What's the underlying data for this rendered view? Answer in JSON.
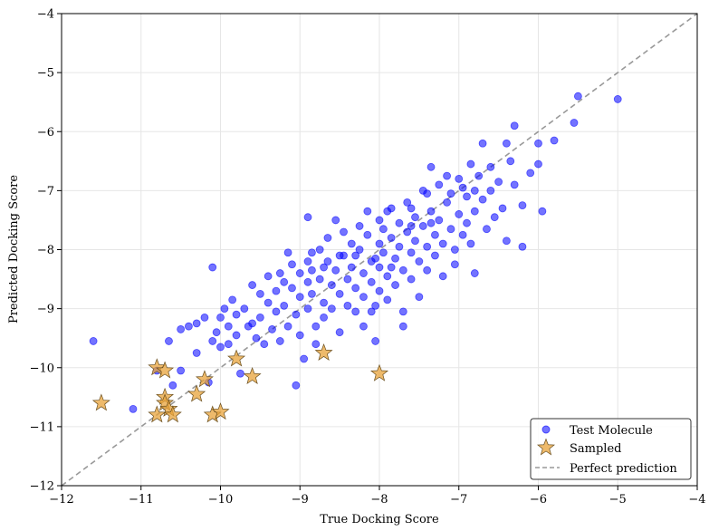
{
  "chart_data": {
    "type": "scatter",
    "title": "",
    "xlabel": "True Docking Score",
    "ylabel": "Predicted Docking Score",
    "xlim": [
      -12,
      -4
    ],
    "ylim": [
      -12,
      -4
    ],
    "xticks": [
      -12,
      -11,
      -10,
      -9,
      -8,
      -7,
      -6,
      -5,
      -4
    ],
    "yticks": [
      -12,
      -11,
      -10,
      -9,
      -8,
      -7,
      -6,
      -5,
      -4
    ],
    "tick_labels": [
      "−12",
      "−11",
      "−10",
      "−9",
      "−8",
      "−7",
      "−6",
      "−5",
      "−4"
    ],
    "grid": true,
    "legend_position": "lower-right",
    "series": [
      {
        "name": "Test Molecule",
        "marker": "circle",
        "color": "#0000ff",
        "points": [
          [
            -11.6,
            -9.55
          ],
          [
            -11.1,
            -10.7
          ],
          [
            -10.8,
            -10.05
          ],
          [
            -10.65,
            -9.55
          ],
          [
            -10.6,
            -10.3
          ],
          [
            -10.5,
            -9.35
          ],
          [
            -10.5,
            -10.05
          ],
          [
            -10.4,
            -9.3
          ],
          [
            -10.3,
            -9.25
          ],
          [
            -10.3,
            -9.75
          ],
          [
            -10.2,
            -9.15
          ],
          [
            -10.15,
            -10.25
          ],
          [
            -10.1,
            -9.55
          ],
          [
            -10.1,
            -8.3
          ],
          [
            -10.05,
            -9.4
          ],
          [
            -10.0,
            -9.15
          ],
          [
            -10.0,
            -9.65
          ],
          [
            -9.95,
            -9.0
          ],
          [
            -9.9,
            -9.3
          ],
          [
            -9.9,
            -9.6
          ],
          [
            -9.85,
            -8.85
          ],
          [
            -9.8,
            -9.1
          ],
          [
            -9.8,
            -9.45
          ],
          [
            -9.75,
            -10.1
          ],
          [
            -9.7,
            -9.0
          ],
          [
            -9.65,
            -9.3
          ],
          [
            -9.6,
            -8.6
          ],
          [
            -9.6,
            -9.25
          ],
          [
            -9.55,
            -9.5
          ],
          [
            -9.5,
            -8.75
          ],
          [
            -9.5,
            -9.15
          ],
          [
            -9.45,
            -9.6
          ],
          [
            -9.4,
            -8.45
          ],
          [
            -9.4,
            -8.9
          ],
          [
            -9.35,
            -9.35
          ],
          [
            -9.3,
            -8.7
          ],
          [
            -9.3,
            -9.05
          ],
          [
            -9.25,
            -9.55
          ],
          [
            -9.2,
            -8.55
          ],
          [
            -9.2,
            -8.95
          ],
          [
            -9.15,
            -9.3
          ],
          [
            -9.1,
            -8.25
          ],
          [
            -9.1,
            -8.65
          ],
          [
            -9.05,
            -9.1
          ],
          [
            -9.0,
            -8.4
          ],
          [
            -9.0,
            -8.8
          ],
          [
            -9.0,
            -9.45
          ],
          [
            -8.95,
            -9.85
          ],
          [
            -8.9,
            -7.45
          ],
          [
            -8.9,
            -8.2
          ],
          [
            -8.9,
            -8.55
          ],
          [
            -8.9,
            -9.0
          ],
          [
            -8.85,
            -8.35
          ],
          [
            -8.85,
            -8.75
          ],
          [
            -8.8,
            -9.3
          ],
          [
            -8.8,
            -9.6
          ],
          [
            -8.75,
            -8.0
          ],
          [
            -8.75,
            -8.5
          ],
          [
            -8.7,
            -8.9
          ],
          [
            -8.7,
            -9.15
          ],
          [
            -8.65,
            -7.8
          ],
          [
            -8.65,
            -8.2
          ],
          [
            -8.6,
            -8.6
          ],
          [
            -8.6,
            -9.0
          ],
          [
            -8.55,
            -7.5
          ],
          [
            -8.55,
            -8.35
          ],
          [
            -8.5,
            -8.75
          ],
          [
            -8.5,
            -9.4
          ],
          [
            -8.45,
            -7.7
          ],
          [
            -8.45,
            -8.1
          ],
          [
            -8.4,
            -8.5
          ],
          [
            -8.4,
            -8.95
          ],
          [
            -8.35,
            -7.9
          ],
          [
            -8.35,
            -8.3
          ],
          [
            -8.3,
            -8.65
          ],
          [
            -8.3,
            -9.05
          ],
          [
            -8.25,
            -7.6
          ],
          [
            -8.25,
            -8.0
          ],
          [
            -8.2,
            -8.4
          ],
          [
            -8.2,
            -8.8
          ],
          [
            -8.2,
            -9.3
          ],
          [
            -8.15,
            -7.35
          ],
          [
            -8.15,
            -7.75
          ],
          [
            -8.1,
            -8.2
          ],
          [
            -8.1,
            -8.55
          ],
          [
            -8.05,
            -8.95
          ],
          [
            -8.05,
            -9.55
          ],
          [
            -8.0,
            -7.5
          ],
          [
            -8.0,
            -7.9
          ],
          [
            -8.0,
            -8.3
          ],
          [
            -8.0,
            -8.7
          ],
          [
            -7.95,
            -7.65
          ],
          [
            -7.95,
            -8.05
          ],
          [
            -7.9,
            -8.45
          ],
          [
            -7.9,
            -8.85
          ],
          [
            -7.85,
            -7.3
          ],
          [
            -7.85,
            -7.8
          ],
          [
            -7.8,
            -8.15
          ],
          [
            -7.8,
            -8.6
          ],
          [
            -7.75,
            -7.55
          ],
          [
            -7.75,
            -7.95
          ],
          [
            -7.7,
            -8.35
          ],
          [
            -7.7,
            -9.05
          ],
          [
            -7.65,
            -7.2
          ],
          [
            -7.65,
            -7.7
          ],
          [
            -7.6,
            -8.05
          ],
          [
            -7.6,
            -8.5
          ],
          [
            -7.55,
            -7.45
          ],
          [
            -7.55,
            -7.85
          ],
          [
            -7.5,
            -8.2
          ],
          [
            -7.5,
            -8.8
          ],
          [
            -7.45,
            -7.0
          ],
          [
            -7.45,
            -7.6
          ],
          [
            -7.4,
            -7.95
          ],
          [
            -7.4,
            -8.35
          ],
          [
            -7.35,
            -6.6
          ],
          [
            -7.35,
            -7.35
          ],
          [
            -7.3,
            -7.75
          ],
          [
            -7.3,
            -8.1
          ],
          [
            -7.25,
            -6.9
          ],
          [
            -7.25,
            -7.5
          ],
          [
            -7.2,
            -7.9
          ],
          [
            -7.2,
            -8.45
          ],
          [
            -7.15,
            -6.75
          ],
          [
            -7.15,
            -7.2
          ],
          [
            -7.1,
            -7.65
          ],
          [
            -7.05,
            -8.0
          ],
          [
            -7.05,
            -8.25
          ],
          [
            -7.0,
            -6.8
          ],
          [
            -7.0,
            -7.4
          ],
          [
            -6.95,
            -7.75
          ],
          [
            -6.9,
            -7.1
          ],
          [
            -6.9,
            -7.55
          ],
          [
            -6.85,
            -6.55
          ],
          [
            -6.85,
            -7.9
          ],
          [
            -6.8,
            -7.0
          ],
          [
            -6.8,
            -7.35
          ],
          [
            -6.8,
            -8.4
          ],
          [
            -6.75,
            -6.75
          ],
          [
            -6.7,
            -7.15
          ],
          [
            -6.7,
            -6.2
          ],
          [
            -6.65,
            -7.65
          ],
          [
            -6.6,
            -6.6
          ],
          [
            -6.6,
            -7.0
          ],
          [
            -6.55,
            -7.45
          ],
          [
            -6.5,
            -6.85
          ],
          [
            -6.45,
            -7.3
          ],
          [
            -6.4,
            -6.2
          ],
          [
            -6.4,
            -7.85
          ],
          [
            -6.35,
            -6.5
          ],
          [
            -6.3,
            -5.9
          ],
          [
            -6.3,
            -6.9
          ],
          [
            -6.2,
            -7.25
          ],
          [
            -6.2,
            -7.95
          ],
          [
            -6.1,
            -6.7
          ],
          [
            -6.0,
            -6.2
          ],
          [
            -6.0,
            -6.55
          ],
          [
            -5.95,
            -7.35
          ],
          [
            -5.8,
            -6.15
          ],
          [
            -5.55,
            -5.85
          ],
          [
            -5.5,
            -5.4
          ],
          [
            -5.0,
            -5.45
          ],
          [
            -9.05,
            -10.3
          ],
          [
            -8.1,
            -9.05
          ],
          [
            -7.7,
            -9.3
          ],
          [
            -8.85,
            -8.05
          ],
          [
            -9.15,
            -8.05
          ],
          [
            -8.5,
            -8.1
          ],
          [
            -7.6,
            -7.3
          ],
          [
            -7.9,
            -7.35
          ],
          [
            -7.1,
            -7.05
          ],
          [
            -6.95,
            -6.95
          ],
          [
            -7.4,
            -7.05
          ],
          [
            -9.25,
            -8.4
          ],
          [
            -8.7,
            -8.3
          ],
          [
            -8.3,
            -8.1
          ],
          [
            -8.05,
            -8.15
          ],
          [
            -7.85,
            -8.3
          ],
          [
            -7.6,
            -7.6
          ],
          [
            -7.35,
            -7.55
          ]
        ]
      },
      {
        "name": "Sampled",
        "marker": "star",
        "color": "#e8a33a",
        "points": [
          [
            -11.5,
            -10.6
          ],
          [
            -10.8,
            -10.0
          ],
          [
            -10.8,
            -10.8
          ],
          [
            -10.7,
            -10.05
          ],
          [
            -10.7,
            -10.5
          ],
          [
            -10.7,
            -10.6
          ],
          [
            -10.65,
            -10.7
          ],
          [
            -10.6,
            -10.8
          ],
          [
            -10.3,
            -10.45
          ],
          [
            -10.2,
            -10.2
          ],
          [
            -10.1,
            -10.8
          ],
          [
            -10.0,
            -10.75
          ],
          [
            -9.8,
            -9.85
          ],
          [
            -9.6,
            -10.15
          ],
          [
            -8.7,
            -9.75
          ],
          [
            -8.0,
            -10.1
          ]
        ]
      },
      {
        "name": "Perfect prediction",
        "marker": "dashed-line",
        "color": "#999999",
        "points": [
          [
            -12,
            -12
          ],
          [
            -4,
            -4
          ]
        ]
      }
    ]
  }
}
